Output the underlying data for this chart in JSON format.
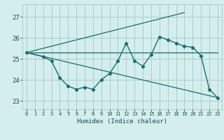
{
  "xlabel": "Humidex (Indice chaleur)",
  "bg_color": "#d4eeee",
  "grid_color": "#aacccc",
  "line_color": "#1a6e6a",
  "xlim": [
    -0.5,
    23.5
  ],
  "ylim": [
    22.6,
    27.6
  ],
  "yticks": [
    23,
    24,
    25,
    26,
    27
  ],
  "xticks": [
    0,
    1,
    2,
    3,
    4,
    5,
    6,
    7,
    8,
    9,
    10,
    11,
    12,
    13,
    14,
    15,
    16,
    17,
    18,
    19,
    20,
    21,
    22,
    23
  ],
  "line1_x": [
    0,
    2,
    3,
    4,
    5,
    6,
    7,
    8,
    9,
    10,
    11,
    12,
    13,
    14,
    15,
    16,
    17,
    18,
    19,
    20,
    21,
    22,
    23
  ],
  "line1_y": [
    25.3,
    25.1,
    24.9,
    24.1,
    23.7,
    23.55,
    23.65,
    23.55,
    24.0,
    24.3,
    24.9,
    25.75,
    24.9,
    24.65,
    25.2,
    26.05,
    25.9,
    25.75,
    25.6,
    25.55,
    25.15,
    23.55,
    23.15
  ],
  "line2_x": [
    0,
    23
  ],
  "line2_y": [
    25.3,
    25.3
  ],
  "line3_x": [
    0,
    19
  ],
  "line3_y": [
    25.3,
    27.2
  ],
  "line4_x": [
    0,
    23
  ],
  "line4_y": [
    25.3,
    23.15
  ]
}
